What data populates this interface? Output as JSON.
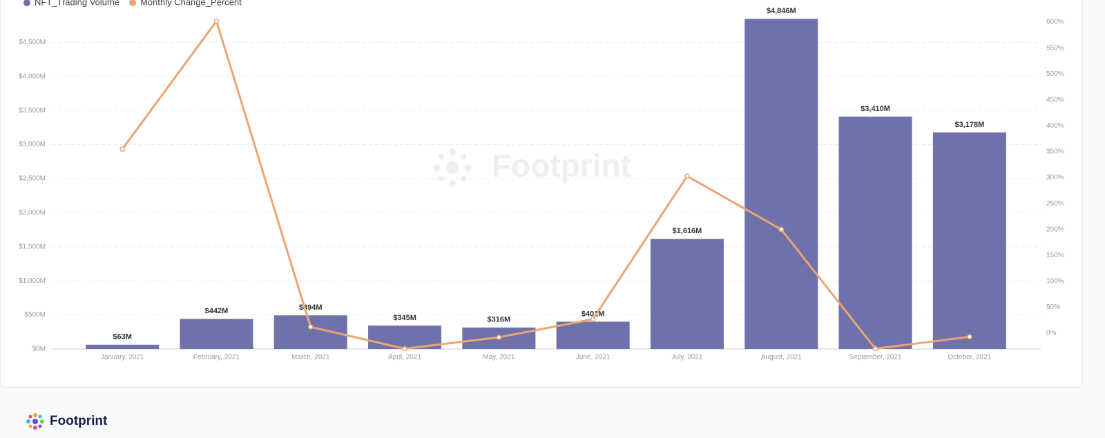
{
  "chart_data": {
    "type": "bar-line",
    "watermark": "Footprint",
    "categories": [
      "January, 2021",
      "February, 2021",
      "March, 2021",
      "April, 2021",
      "May, 2021",
      "June, 2021",
      "July, 2021",
      "August, 2021",
      "September, 2021",
      "October, 2021"
    ],
    "series": [
      {
        "name": "NFT_Trading Volume",
        "type": "bar",
        "color": "#6f71aa",
        "values": [
          63,
          442,
          494,
          345,
          316,
          401,
          1616,
          4846,
          3410,
          3178
        ],
        "value_labels": [
          "$63M",
          "$442M",
          "$494M",
          "$345M",
          "$316M",
          "$401M",
          "$1,616M",
          "$4,846M",
          "$3,410M",
          "$3,178M"
        ]
      },
      {
        "name": "Monthly Change_Percent",
        "type": "line",
        "color": "#eba571",
        "axis": "y2",
        "values": [
          355,
          602,
          12,
          -30,
          -8,
          27,
          303,
          200,
          -30,
          -7
        ]
      }
    ],
    "ylim": [
      0,
      5000
    ],
    "yticks": [
      {
        "value": 0,
        "label": "$0M"
      },
      {
        "value": 500,
        "label": "$500M"
      },
      {
        "value": 1000,
        "label": "$1,000M"
      },
      {
        "value": 1500,
        "label": "$1,500M"
      },
      {
        "value": 2000,
        "label": "$2,000M"
      },
      {
        "value": 2500,
        "label": "$2,500M"
      },
      {
        "value": 3000,
        "label": "$3,000M"
      },
      {
        "value": 3500,
        "label": "$3,500M"
      },
      {
        "value": 4000,
        "label": "$4,000M"
      },
      {
        "value": 4500,
        "label": "$4,500M"
      }
    ],
    "y2lim": [
      -30.6,
      626.7
    ],
    "y2ticks": [
      {
        "value": 0,
        "label": "0%"
      },
      {
        "value": 50,
        "label": "50%"
      },
      {
        "value": 100,
        "label": "100%"
      },
      {
        "value": 150,
        "label": "150%"
      },
      {
        "value": 200,
        "label": "200%"
      },
      {
        "value": 250,
        "label": "250%"
      },
      {
        "value": 300,
        "label": "300%"
      },
      {
        "value": 350,
        "label": "350%"
      },
      {
        "value": 400,
        "label": "400%"
      },
      {
        "value": 450,
        "label": "450%"
      },
      {
        "value": 500,
        "label": "500%"
      },
      {
        "value": 550,
        "label": "550%"
      },
      {
        "value": 600,
        "label": "600%"
      }
    ],
    "grid": true
  },
  "footer": {
    "brand": "Footprint"
  }
}
